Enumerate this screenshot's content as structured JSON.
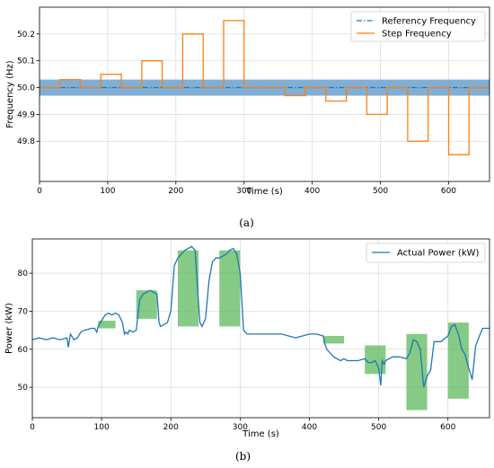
{
  "chart_data": [
    {
      "type": "line",
      "xlabel": "Time (s)",
      "ylabel": "Frequency (Hz)",
      "caption": "(a)",
      "xlim": [
        0,
        660
      ],
      "ylim": [
        49.65,
        50.3
      ],
      "xticks": [
        0,
        100,
        200,
        300,
        400,
        500,
        600
      ],
      "xtick_labels": [
        "0",
        "100",
        "200",
        "300",
        "400",
        "500",
        "600"
      ],
      "yticks": [
        49.8,
        49.9,
        50.0,
        50.1,
        50.2
      ],
      "ytick_labels": [
        "49.8",
        "49.9",
        "50.0",
        "50.1",
        "50.2"
      ],
      "grid": true,
      "legend_position": "top-right",
      "band": {
        "y0": 49.97,
        "y1": 50.03,
        "color": "#7aaad2"
      },
      "series": [
        {
          "name": "Referency Frequency",
          "style": "dashdot",
          "color": "#1f77b4",
          "x": [
            0,
            660
          ],
          "y": [
            50.0,
            50.0
          ]
        },
        {
          "name": "Step Frequency",
          "style": "step",
          "color": "#ff7f0e",
          "x": [
            0,
            30,
            30,
            60,
            60,
            90,
            90,
            120,
            120,
            150,
            150,
            180,
            180,
            210,
            210,
            240,
            240,
            270,
            270,
            300,
            300,
            360,
            360,
            390,
            390,
            420,
            420,
            450,
            450,
            480,
            480,
            510,
            510,
            540,
            540,
            570,
            570,
            600,
            600,
            630,
            630,
            660
          ],
          "y": [
            50.0,
            50.0,
            50.03,
            50.03,
            50.0,
            50.0,
            50.05,
            50.05,
            50.0,
            50.0,
            50.1,
            50.1,
            50.0,
            50.0,
            50.2,
            50.2,
            50.0,
            50.0,
            50.25,
            50.25,
            50.0,
            50.0,
            49.97,
            49.97,
            50.0,
            50.0,
            49.95,
            49.95,
            50.0,
            50.0,
            49.9,
            49.9,
            50.0,
            50.0,
            49.8,
            49.8,
            50.0,
            50.0,
            49.75,
            49.75,
            50.0,
            50.0
          ]
        }
      ]
    },
    {
      "type": "line",
      "xlabel": "Time (s)",
      "ylabel": "Power (kW)",
      "caption": "(b)",
      "xlim": [
        0,
        660
      ],
      "ylim": [
        42,
        89
      ],
      "xticks": [
        0,
        100,
        200,
        300,
        400,
        500,
        600
      ],
      "xtick_labels": [
        "0",
        "100",
        "200",
        "300",
        "400",
        "500",
        "600"
      ],
      "yticks": [
        50,
        60,
        70,
        80
      ],
      "ytick_labels": [
        "50",
        "60",
        "70",
        "80"
      ],
      "grid": true,
      "legend_position": "top-right",
      "highlight_color": "#5cb85c",
      "highlights": [
        {
          "x0": 95,
          "x1": 120,
          "y0": 65.5,
          "y1": 67.5
        },
        {
          "x0": 150,
          "x1": 180,
          "y0": 68,
          "y1": 75.5
        },
        {
          "x0": 210,
          "x1": 240,
          "y0": 66,
          "y1": 86
        },
        {
          "x0": 270,
          "x1": 300,
          "y0": 66,
          "y1": 86
        },
        {
          "x0": 420,
          "x1": 450,
          "y0": 61.5,
          "y1": 63.5
        },
        {
          "x0": 480,
          "x1": 510,
          "y0": 53.5,
          "y1": 61
        },
        {
          "x0": 540,
          "x1": 570,
          "y0": 44,
          "y1": 64
        },
        {
          "x0": 600,
          "x1": 630,
          "y0": 47,
          "y1": 67
        }
      ],
      "series": [
        {
          "name": "Actual Power (kW)",
          "color": "#1f77b4",
          "x": [
            0,
            10,
            20,
            30,
            40,
            50,
            52,
            55,
            60,
            65,
            70,
            75,
            80,
            85,
            90,
            93,
            95,
            100,
            105,
            110,
            115,
            120,
            125,
            130,
            133,
            135,
            138,
            140,
            145,
            150,
            155,
            160,
            165,
            170,
            175,
            180,
            183,
            185,
            190,
            195,
            200,
            205,
            210,
            215,
            220,
            225,
            230,
            235,
            240,
            242,
            245,
            250,
            255,
            260,
            265,
            270,
            275,
            280,
            285,
            290,
            295,
            300,
            305,
            310,
            315,
            320,
            330,
            340,
            350,
            360,
            370,
            380,
            390,
            400,
            410,
            420,
            422,
            425,
            430,
            435,
            440,
            445,
            450,
            455,
            460,
            470,
            480,
            485,
            490,
            495,
            500,
            503,
            505,
            508,
            510,
            515,
            520,
            530,
            540,
            545,
            550,
            555,
            560,
            565,
            570,
            575,
            580,
            590,
            600,
            605,
            610,
            615,
            620,
            625,
            630,
            635,
            640,
            650,
            660
          ],
          "y": [
            62.5,
            63,
            62.5,
            63,
            62.5,
            63,
            60.5,
            64,
            62.5,
            63,
            64.5,
            65,
            65.2,
            65.5,
            65.5,
            64.5,
            66,
            67.5,
            69,
            69.5,
            69,
            69.5,
            69,
            67,
            64,
            64.5,
            64,
            65,
            64.5,
            65,
            73,
            74.5,
            75,
            75.5,
            75,
            74.5,
            67,
            66,
            66.5,
            67,
            70,
            82,
            84,
            85,
            86,
            86.5,
            87,
            86,
            72,
            67,
            66,
            68,
            78,
            83,
            84,
            84,
            84.5,
            85,
            86,
            86.5,
            85,
            80,
            65,
            64,
            64,
            64,
            64,
            64,
            64,
            64,
            63.5,
            63,
            63.5,
            64,
            64,
            63.5,
            61.5,
            60,
            59,
            58,
            57.5,
            57,
            57.5,
            57,
            57,
            57,
            57.5,
            56.5,
            56.5,
            57,
            55,
            50.5,
            57,
            56,
            57,
            57.5,
            58,
            58,
            57.5,
            59,
            62.5,
            62,
            60,
            50,
            53,
            54.5,
            62,
            62,
            63.5,
            66,
            66.5,
            64,
            60,
            58.5,
            55,
            52,
            61,
            65.5,
            65.5
          ]
        }
      ]
    }
  ]
}
